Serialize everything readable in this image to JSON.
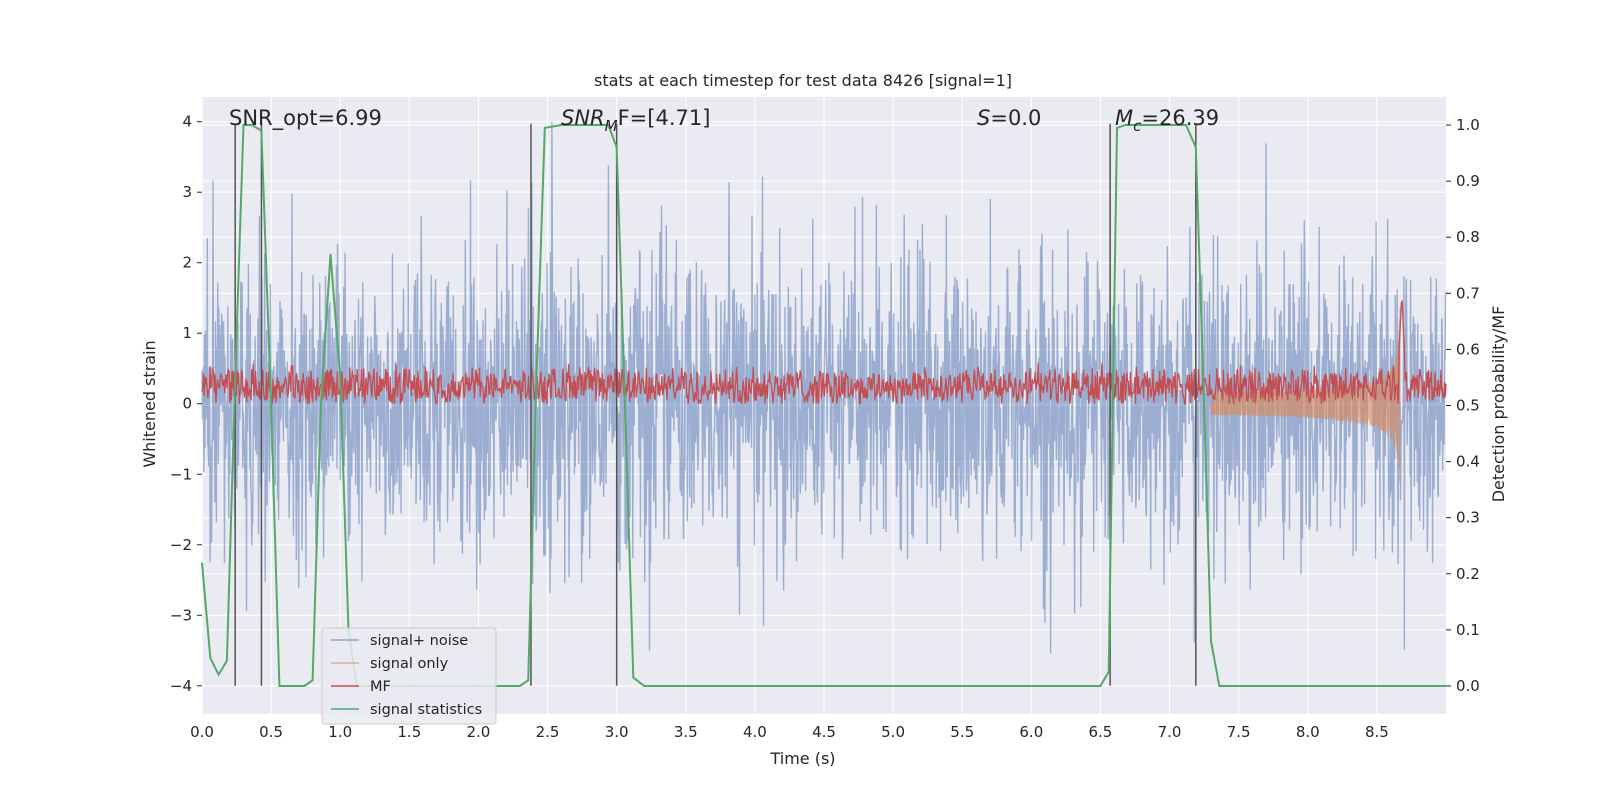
{
  "chart_data": {
    "type": "line",
    "title": "stats at each timestep for test data 8426 [signal=1]",
    "xlabel": "Time (s)",
    "ylabel_left": "Whitened strain",
    "ylabel_right": "Detection probability/MF",
    "xlim": [
      0.0,
      9.0
    ],
    "ylim_left": [
      -4.4,
      4.35
    ],
    "ylim_right": [
      -0.05,
      1.05
    ],
    "x_ticks": [
      "0.0",
      "0.5",
      "1.0",
      "1.5",
      "2.0",
      "2.5",
      "3.0",
      "3.5",
      "4.0",
      "4.5",
      "5.0",
      "5.5",
      "6.0",
      "6.5",
      "7.0",
      "7.5",
      "8.0",
      "8.5"
    ],
    "x_tick_values": [
      0.0,
      0.5,
      1.0,
      1.5,
      2.0,
      2.5,
      3.0,
      3.5,
      4.0,
      4.5,
      5.0,
      5.5,
      6.0,
      6.5,
      7.0,
      7.5,
      8.0,
      8.5
    ],
    "y_left_ticks": [
      "−4",
      "−3",
      "−2",
      "−1",
      "0",
      "1",
      "2",
      "3",
      "4"
    ],
    "y_left_tick_values": [
      -4,
      -3,
      -2,
      -1,
      0,
      1,
      2,
      3,
      4
    ],
    "y_right_ticks": [
      "0.0",
      "0.1",
      "0.2",
      "0.3",
      "0.4",
      "0.5",
      "0.6",
      "0.7",
      "0.8",
      "0.9",
      "1.0"
    ],
    "y_right_tick_values": [
      0.0,
      0.1,
      0.2,
      0.3,
      0.4,
      0.5,
      0.6,
      0.7,
      0.8,
      0.9,
      1.0
    ],
    "grid": true,
    "legend_position": "bottom-left",
    "annotations": {
      "snr_opt": "SNR_opt=6.99",
      "snr_mf_italic": "SNR",
      "snr_mf_sub": "M",
      "snr_mf_tail": "F=[4.71]",
      "s_italic": "S",
      "s_tail": "=0.0",
      "mc_italic": "M",
      "mc_sub": "c",
      "mc_tail": "=26.39"
    },
    "vertical_lines_x": [
      0.24,
      0.43,
      2.38,
      3.0,
      6.57,
      7.19
    ],
    "series": [
      {
        "name": "signal+ noise",
        "color": "#4c72b0",
        "axis": "left",
        "style": "noise",
        "amplitude_std": 1.0,
        "min": -4.0,
        "max": 4.0
      },
      {
        "name": "signal only",
        "color": "#dd8452",
        "axis": "left",
        "style": "chirp",
        "start": 7.3,
        "merger": 8.67,
        "peak_amplitude": 1.6
      },
      {
        "name": "MF",
        "color": "#c44e52",
        "axis": "left",
        "style": "noise-band",
        "baseline": 0.25,
        "amplitude": 0.22,
        "spike_at": 8.68,
        "spike_value": 1.55
      },
      {
        "name": "signal statistics",
        "color": "#55a868",
        "axis": "right",
        "x": [
          0.0,
          0.06,
          0.12,
          0.18,
          0.24,
          0.3,
          0.36,
          0.43,
          0.5,
          0.56,
          0.62,
          0.68,
          0.74,
          0.8,
          0.86,
          0.93,
          1.0,
          1.06,
          1.12,
          1.18,
          1.24,
          1.3,
          2.0,
          2.3,
          2.36,
          2.42,
          2.48,
          2.6,
          2.8,
          2.94,
          3.0,
          3.06,
          3.12,
          3.2,
          3.4,
          4.0,
          5.0,
          6.0,
          6.5,
          6.56,
          6.62,
          6.68,
          7.0,
          7.12,
          7.19,
          7.25,
          7.3,
          7.36,
          8.0,
          9.0
        ],
        "values": [
          0.22,
          0.05,
          0.02,
          0.045,
          0.55,
          1.0,
          1.0,
          0.99,
          0.5,
          0.0,
          0.0,
          0.0,
          0.0,
          0.01,
          0.5,
          0.77,
          0.55,
          0.1,
          0.0,
          0.0,
          0.0,
          0.0,
          0.0,
          0.0,
          0.01,
          0.55,
          0.995,
          1.0,
          1.0,
          1.0,
          0.96,
          0.5,
          0.015,
          0.0,
          0.0,
          0.0,
          0.0,
          0.0,
          0.0,
          0.025,
          0.995,
          1.0,
          1.0,
          1.0,
          0.96,
          0.5,
          0.08,
          0.0,
          0.0,
          0.0
        ]
      }
    ]
  }
}
